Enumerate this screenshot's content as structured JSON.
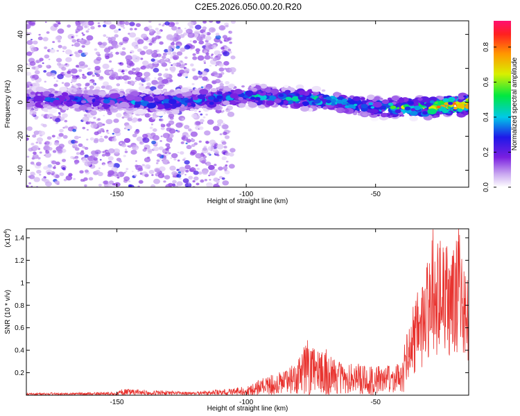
{
  "title": "C2E5.2026.050.00.20.R20",
  "chart_data": [
    {
      "type": "heatmap",
      "xlabel": "Height of straight line (km)",
      "ylabel": "Frequency (Hz)",
      "xlim": [
        -185,
        -14
      ],
      "ylim": [
        -50,
        48
      ],
      "xticks": [
        -150,
        -100,
        -50
      ],
      "yticks": [
        -40,
        -20,
        0,
        20,
        40
      ],
      "colorbar": {
        "label": "Normalized spectral amplitude",
        "range": [
          0,
          0.95
        ],
        "ticks": [
          0.0,
          0.2,
          0.4,
          0.6,
          0.8
        ]
      },
      "ridge": {
        "description_points_x": [
          -185,
          -160,
          -130,
          -100,
          -75,
          -50,
          -30,
          -14
        ],
        "center_frequency": [
          2,
          1,
          0,
          4,
          2,
          -3,
          -3,
          -1
        ],
        "peak_amplitude": [
          0.3,
          0.35,
          0.4,
          0.45,
          0.5,
          0.5,
          0.7,
          0.95
        ]
      }
    },
    {
      "type": "line",
      "xlabel": "Height of straight line (km)",
      "ylabel": "SNR (10 * v/v)",
      "exponent_label": "(x10",
      "exponent_power": "4",
      "exponent_close": ")",
      "xlim": [
        -185,
        -14
      ],
      "ylim": [
        0,
        1.48
      ],
      "xticks": [
        -150,
        -100,
        -50
      ],
      "yticks": [
        0.2,
        0.4,
        0.6,
        0.8,
        1.0,
        1.2,
        1.4
      ],
      "series": [
        {
          "color": "#e8332f",
          "envelope_x": [
            -185,
            -150,
            -148,
            -120,
            -100,
            -90,
            -80,
            -78,
            -60,
            -50,
            -40,
            -38,
            -30,
            -28,
            -20,
            -18,
            -14
          ],
          "envelope_y": [
            0.02,
            0.03,
            0.06,
            0.03,
            0.08,
            0.2,
            0.3,
            0.52,
            0.3,
            0.3,
            0.3,
            0.55,
            1.1,
            1.38,
            1.2,
            1.48,
            0.9
          ]
        }
      ]
    }
  ]
}
